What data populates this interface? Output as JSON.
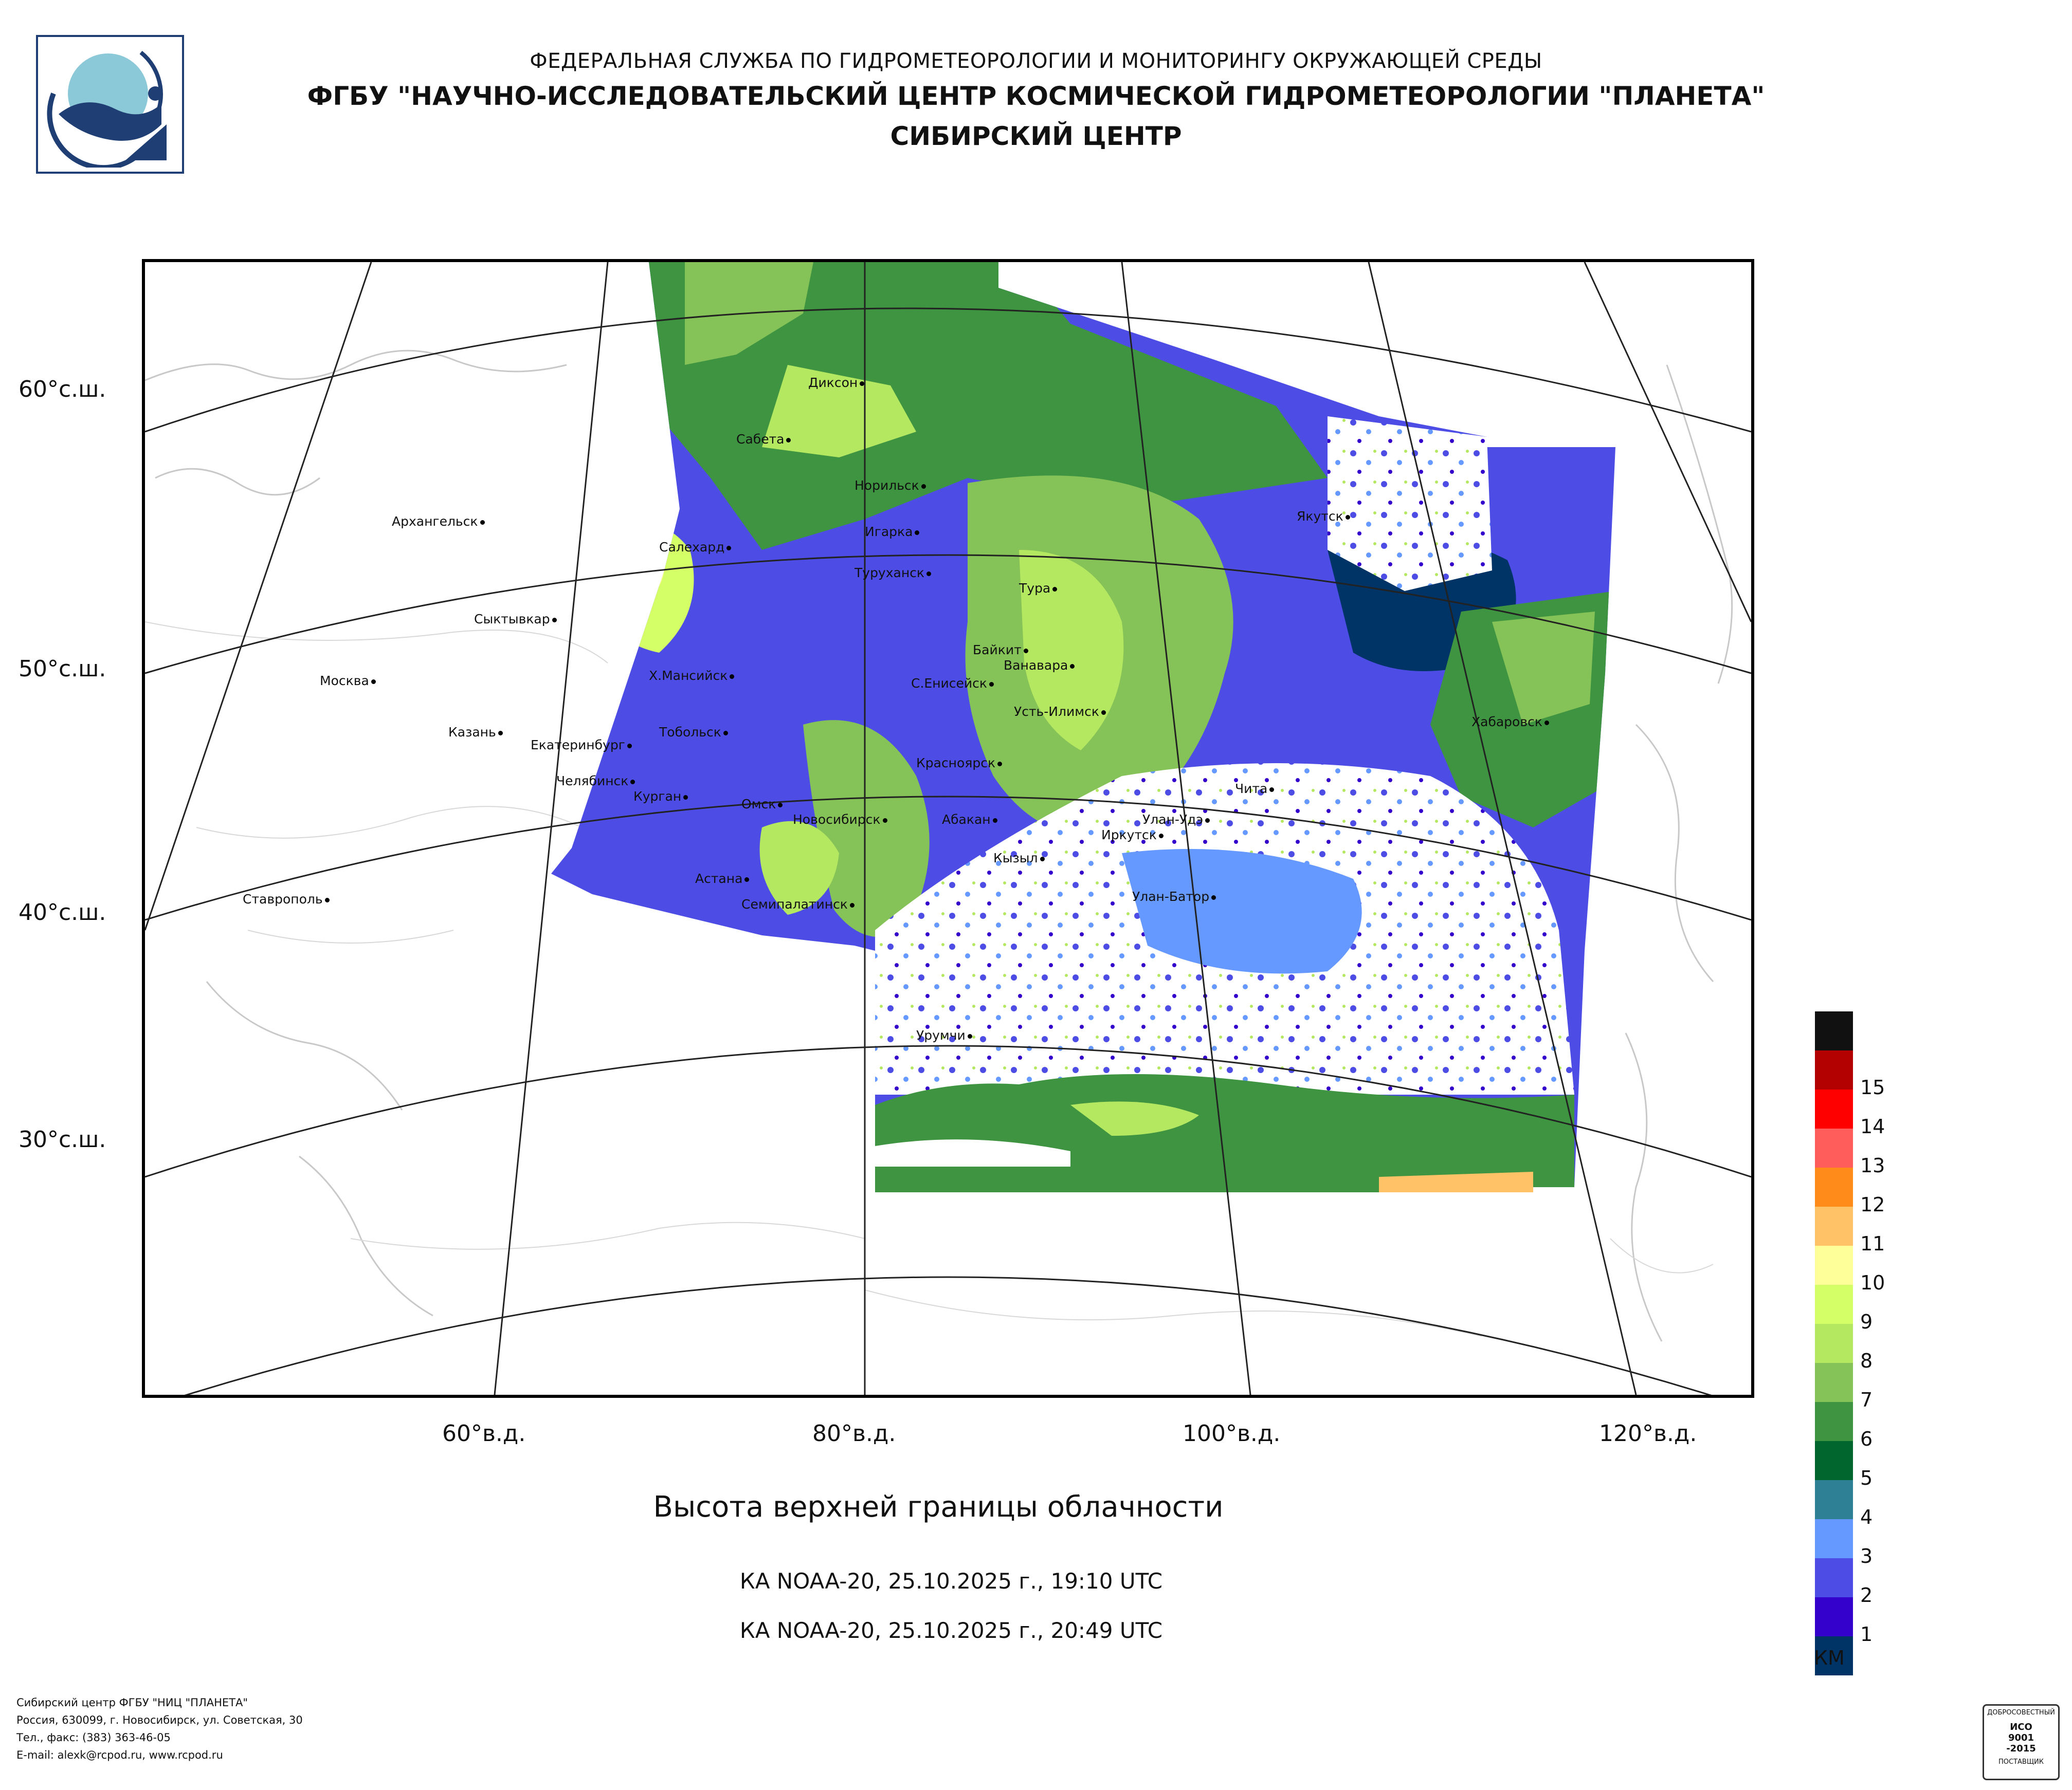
{
  "header": {
    "line1": "ФЕДЕРАЛЬНАЯ СЛУЖБА ПО ГИДРОМЕТЕОРОЛОГИИ И МОНИТОРИНГУ ОКРУЖАЮЩЕЙ СРЕДЫ",
    "line2": "ФГБУ \"НАУЧНО-ИССЛЕДОВАТЕЛЬСКИЙ ЦЕНТР КОСМИЧЕСКОЙ ГИДРОМЕТЕОРОЛОГИИ \"ПЛАНЕТА\"",
    "line3": "СИБИРСКИЙ ЦЕНТР"
  },
  "logo": {
    "icon": "planeta-logo-icon"
  },
  "map": {
    "lat_labels": [
      "60°с.ш.",
      "50°с.ш.",
      "40°с.ш.",
      "30°с.ш."
    ],
    "lon_labels": [
      "60°в.д.",
      "80°в.д.",
      "100°в.д.",
      "120°в.д."
    ],
    "cities": [
      "Диксон",
      "Сабета",
      "Норильск",
      "Игарка",
      "Салехард",
      "Туруханск",
      "Тура",
      "Архангельск",
      "Сыктывкар",
      "Москва",
      "Казань",
      "Х.Мансийск",
      "Екатеринбург",
      "Тобольск",
      "Челябинск",
      "Курган",
      "Омск",
      "Новосибирск",
      "Байкит",
      "Ванавара",
      "С.Енисейск",
      "Усть-Илимск",
      "Красноярск",
      "Абакан",
      "Иркутск",
      "Улан-Удэ",
      "Чита",
      "Кызыл",
      "Улан-Батор",
      "Астана",
      "Семипалатинск",
      "Урумчи",
      "Якутск",
      "Хабаровск",
      "Ставрополь"
    ]
  },
  "caption": "Высота верхней границы облачности",
  "passes": [
    "КА NOAA-20, 25.10.2025 г., 19:10 UTC",
    "КА NOAA-20, 25.10.2025 г., 20:49 UTC"
  ],
  "legend": {
    "unit": "КМ",
    "levels": [
      {
        "label": "",
        "color": "#111111"
      },
      {
        "label": "15",
        "color": "#b30000"
      },
      {
        "label": "14",
        "color": "#ff0000"
      },
      {
        "label": "13",
        "color": "#ff5c5c"
      },
      {
        "label": "12",
        "color": "#ff8c1a"
      },
      {
        "label": "11",
        "color": "#ffc266"
      },
      {
        "label": "10",
        "color": "#ffff99"
      },
      {
        "label": "9",
        "color": "#d4ff66"
      },
      {
        "label": "8",
        "color": "#b5e861"
      },
      {
        "label": "7",
        "color": "#85c257"
      },
      {
        "label": "6",
        "color": "#3e9440"
      },
      {
        "label": "5",
        "color": "#00662e"
      },
      {
        "label": "4",
        "color": "#2e8094"
      },
      {
        "label": "3",
        "color": "#6699ff"
      },
      {
        "label": "2",
        "color": "#4d4de6"
      },
      {
        "label": "1",
        "color": "#3300cc"
      },
      {
        "label": "",
        "color": "#003366"
      }
    ]
  },
  "footer": {
    "line1": "Сибирский центр ФГБУ \"НИЦ \"ПЛАНЕТА\"",
    "line2": "Россия, 630099, г. Новосибирск, ул. Советская, 30",
    "line3": "Тел., факс: (383) 363-46-05",
    "line4": "E-mail: alexk@rcpod.ru, www.rcpod.ru"
  },
  "iso": {
    "top": "ДОБРОСОВЕСТНЫЙ",
    "l1": "ИСО",
    "l2": "9001",
    "l3": "-2015",
    "bottom": "ПОСТАВЩИК"
  }
}
